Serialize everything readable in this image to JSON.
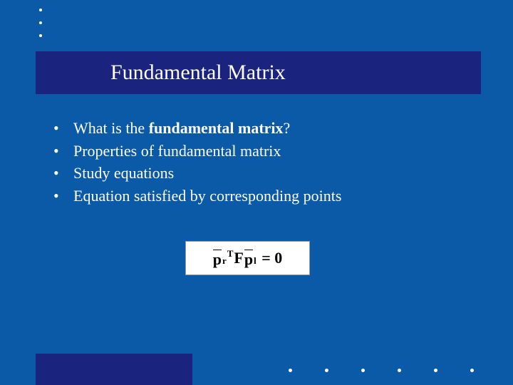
{
  "colors": {
    "slide_background": "#0a5aa8",
    "title_bar_background": "#1a237e",
    "footer_bar_background": "#1a237e",
    "text_color": "#ffffff",
    "equation_background": "#ffffff",
    "equation_text": "#000000",
    "dot_color": "#ffffff"
  },
  "decoration": {
    "top_dot_count": 3,
    "bottom_dot_count": 6
  },
  "title": "Fundamental Matrix",
  "bullets": [
    {
      "prefix": "What is the ",
      "bold": "fundamental matrix",
      "suffix": "?"
    },
    {
      "prefix": "Properties of fundamental matrix",
      "bold": "",
      "suffix": ""
    },
    {
      "prefix": "Study equations",
      "bold": "",
      "suffix": ""
    },
    {
      "prefix": "Equation satisfied by corresponding points",
      "bold": "",
      "suffix": ""
    }
  ],
  "equation": {
    "left_var": "p",
    "left_sub": "r",
    "left_sup": "T",
    "middle_var": "F",
    "right_var": "p",
    "right_sub": "l",
    "rhs": "= 0"
  }
}
